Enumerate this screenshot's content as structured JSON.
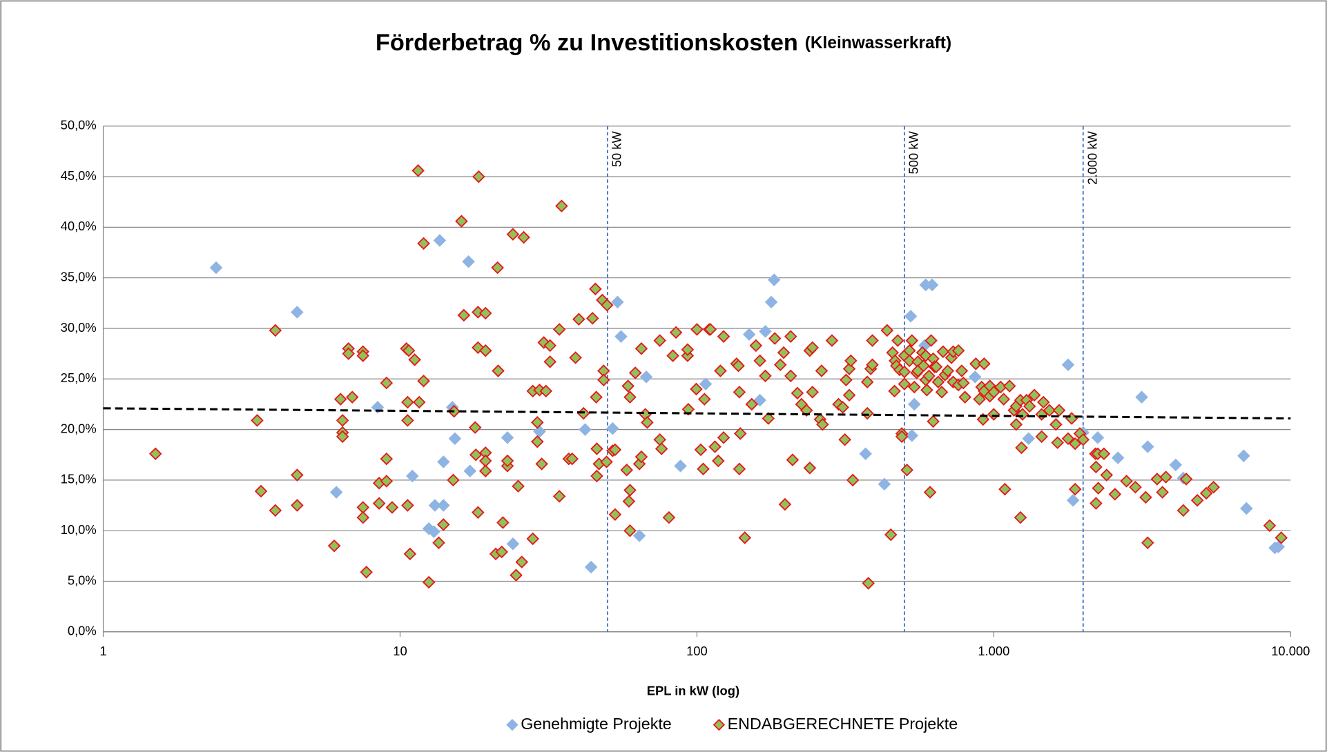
{
  "chart_data": {
    "type": "scatter",
    "title": "Förderbetrag  % zu Investitionskosten",
    "subtitle": "(Kleinwasserkraft)",
    "xlabel": "EPL in kW (log)",
    "xscale": "log",
    "xlim": [
      1,
      10000
    ],
    "xticks": [
      1,
      10,
      100,
      {
        "value": 1000,
        "label": "1.000"
      },
      {
        "value": 10000,
        "label": "10.000"
      }
    ],
    "ylim": [
      0,
      50
    ],
    "yticks": [
      {
        "value": 0,
        "label": "0,0%"
      },
      {
        "value": 5,
        "label": "5,0%"
      },
      {
        "value": 10,
        "label": "10,0%"
      },
      {
        "value": 15,
        "label": "15,0%"
      },
      {
        "value": 20,
        "label": "20,0%"
      },
      {
        "value": 25,
        "label": "25,0%"
      },
      {
        "value": 30,
        "label": "30,0%"
      },
      {
        "value": 35,
        "label": "35,0%"
      },
      {
        "value": 40,
        "label": "40,0%"
      },
      {
        "value": 45,
        "label": "45,0%"
      },
      {
        "value": 50,
        "label": "50,0%"
      }
    ],
    "grid": true,
    "legend": "bottom",
    "vlines": [
      {
        "x": 50,
        "label": "50 kW"
      },
      {
        "x": 500,
        "label": "500 kW"
      },
      {
        "x": 2000,
        "label": "2.000 kW"
      }
    ],
    "vline_color": "#4472c4",
    "trendline": {
      "x": [
        1,
        10000
      ],
      "values": [
        22.1,
        21.1
      ],
      "color": "#000000"
    },
    "series": [
      {
        "name": "Genehmigte Projekte",
        "color": "#8eb4e3",
        "edge_color": "#8eb4e3",
        "x": [
          2.4,
          4.5,
          6.1,
          8.4,
          11,
          12.5,
          13,
          13.6,
          14,
          13.1,
          14,
          15,
          15.3,
          17,
          17.2,
          23,
          24,
          29.5,
          42,
          44,
          52,
          55.5,
          54,
          64,
          67.5,
          88,
          107,
          150,
          170,
          178,
          182,
          163,
          370,
          428,
          525,
          540,
          530,
          590,
          620,
          585,
          865,
          1310,
          1780,
          1850,
          2000,
          2240,
          2620,
          3150,
          3300,
          4100,
          4350,
          6950,
          7100,
          8850,
          9100
        ],
        "values": [
          36.0,
          31.6,
          13.8,
          22.2,
          15.4,
          10.2,
          9.9,
          38.7,
          16.8,
          12.5,
          12.5,
          22.2,
          19.1,
          36.6,
          15.9,
          19.2,
          8.7,
          19.8,
          20.0,
          6.4,
          20.1,
          29.2,
          32.6,
          9.5,
          25.2,
          16.4,
          24.5,
          29.4,
          29.7,
          32.6,
          34.8,
          22.9,
          17.6,
          14.6,
          31.2,
          22.5,
          19.4,
          34.3,
          34.3,
          28.3,
          25.2,
          19.1,
          26.4,
          13.0,
          19.7,
          19.2,
          17.2,
          23.2,
          18.3,
          16.5,
          15.2,
          17.4,
          12.2,
          8.3,
          8.4
        ]
      },
      {
        "name": "ENDABGERECHNETE Projekte",
        "color": "#92c05a",
        "edge_color": "#e8161a",
        "x": [
          1.5,
          3.3,
          3.4,
          3.8,
          3.8,
          4.5,
          4.5,
          6.0,
          6.3,
          6.4,
          6.4,
          6.4,
          6.7,
          6.7,
          6.9,
          7.5,
          7.5,
          7.5,
          7.5,
          7.7,
          8.5,
          8.5,
          9.0,
          9.0,
          9.0,
          9.4,
          10.5,
          10.7,
          10.6,
          10.6,
          10.6,
          10.8,
          11.2,
          11.5,
          11.6,
          12,
          12,
          12.5,
          13.5,
          14,
          15.1,
          15.2,
          16.1,
          16.4,
          17.9,
          18,
          18.3,
          18.3,
          18.4,
          18.3,
          19.4,
          19.4,
          19.4,
          19.4,
          19.4,
          21.3,
          21.4,
          21,
          22,
          22.2,
          23,
          23,
          24,
          24.6,
          25,
          26.1,
          25.7,
          28,
          28,
          29.5,
          31,
          29,
          29,
          30,
          30.5,
          32,
          32,
          34.4,
          35,
          34.4,
          37,
          38,
          39,
          40,
          41.5,
          44.5,
          45.5,
          45.8,
          46,
          46,
          46.8,
          48,
          48.5,
          48.5,
          49.8,
          49.6,
          52,
          53,
          53,
          58.6,
          59.5,
          58,
          59.5,
          59,
          59.5,
          62,
          64,
          65,
          65,
          67,
          68,
          75,
          75,
          76,
          80.5,
          83,
          85,
          93,
          93,
          93.5,
          99.5,
          100,
          103,
          105,
          106,
          110,
          111,
          115,
          118,
          120,
          123,
          123,
          136,
          138,
          139,
          140,
          139,
          145,
          153,
          158,
          163,
          170,
          174,
          183,
          191,
          196,
          198,
          207,
          207,
          210,
          218,
          225,
          234,
          240,
          240,
          245,
          245,
          260,
          263,
          265,
          285,
          300,
          310,
          318,
          315,
          326,
          326,
          330,
          335,
          375,
          375,
          378,
          385,
          390,
          390,
          437,
          450,
          456,
          463,
          465,
          470,
          475,
          482,
          490,
          490,
          500,
          500,
          500,
          510,
          520,
          520,
          530,
          540,
          550,
          555,
          555,
          575,
          580,
          590,
          590,
          595,
          605,
          615,
          610,
          625,
          625,
          632,
          640,
          650,
          668,
          675,
          685,
          700,
          720,
          730,
          730,
          760,
          760,
          780,
          790,
          800,
          870,
          895,
          910,
          920,
          928,
          928,
          970,
          970,
          1000,
          1000,
          1055,
          1080,
          1090,
          1130,
          1170,
          1190,
          1190,
          1230,
          1250,
          1230,
          1240,
          1290,
          1320,
          1370,
          1450,
          1450,
          1470,
          1540,
          1620,
          1640,
          1660,
          1780,
          1830,
          1880,
          1880,
          1950,
          2000,
          2200,
          2210,
          2240,
          2210,
          2250,
          2350,
          2400,
          2560,
          2800,
          3000,
          3300,
          3250,
          3550,
          3700,
          3800,
          4350,
          4450,
          4850,
          5200,
          5500,
          8500,
          9300
        ],
        "values": [
          17.6,
          20.9,
          13.9,
          29.8,
          12.0,
          15.5,
          12.5,
          8.5,
          23.0,
          20.9,
          19.7,
          19.3,
          28.0,
          27.5,
          23.2,
          27.7,
          27.3,
          12.3,
          11.3,
          5.9,
          14.7,
          12.7,
          24.6,
          17.1,
          14.9,
          12.3,
          28.0,
          27.8,
          20.9,
          22.7,
          12.5,
          7.7,
          26.9,
          45.6,
          22.7,
          38.4,
          24.8,
          4.9,
          8.8,
          10.6,
          15.0,
          21.8,
          40.6,
          31.3,
          20.2,
          17.5,
          28.1,
          31.6,
          45.0,
          11.8,
          31.5,
          27.8,
          17.7,
          16.9,
          15.9,
          36.0,
          25.8,
          7.7,
          7.9,
          10.8,
          16.4,
          16.9,
          39.3,
          5.6,
          14.4,
          39.0,
          6.9,
          9.2,
          23.8,
          23.9,
          23.8,
          18.8,
          20.7,
          16.6,
          28.6,
          28.3,
          26.7,
          29.9,
          42.1,
          13.4,
          17.1,
          17.1,
          27.1,
          30.9,
          21.6,
          31.0,
          33.9,
          23.2,
          18.1,
          15.4,
          16.6,
          32.8,
          25.8,
          24.9,
          32.3,
          16.8,
          17.9,
          18.0,
          11.6,
          24.3,
          23.2,
          16.0,
          14.0,
          12.9,
          10.0,
          25.6,
          16.6,
          17.3,
          28.0,
          21.5,
          20.7,
          28.8,
          19.0,
          18.1,
          11.3,
          27.3,
          29.6,
          27.3,
          27.9,
          22.0,
          24.0,
          29.9,
          18.0,
          16.1,
          23.0,
          29.9,
          29.9,
          18.3,
          16.9,
          25.8,
          19.2,
          29.2,
          26.5,
          26.3,
          23.7,
          19.6,
          16.1,
          9.3,
          22.5,
          28.3,
          26.8,
          25.3,
          21.1,
          29.0,
          26.4,
          27.6,
          12.6,
          29.2,
          25.3,
          17.0,
          23.6,
          22.5,
          21.9,
          27.8,
          16.2,
          28.1,
          23.7,
          21.0,
          25.8,
          20.5,
          28.8,
          22.5,
          22.2,
          24.9,
          19.0,
          23.4,
          26.0,
          26.8,
          15.0,
          24.7,
          21.6,
          4.8,
          26.0,
          26.4,
          28.8,
          29.8,
          9.6,
          27.6,
          23.8,
          26.8,
          26.3,
          28.8,
          25.9,
          19.6,
          19.3,
          27.3,
          25.7,
          24.5,
          16.0,
          27.8,
          26.8,
          28.8,
          24.2,
          25.6,
          26.7,
          25.8,
          27.6,
          26.3,
          27.3,
          24.9,
          23.9,
          25.3,
          28.8,
          13.8,
          20.8,
          27.0,
          26.2,
          26.2,
          24.7,
          23.7,
          27.7,
          25.4,
          25.8,
          27.1,
          27.7,
          24.7,
          27.8,
          24.4,
          25.8,
          24.6,
          23.2,
          26.5,
          23.0,
          24.2,
          21.0,
          26.5,
          23.8,
          24.3,
          23.3,
          23.7,
          21.5,
          24.2,
          23.0,
          14.1,
          24.3,
          21.9,
          22.3,
          20.5,
          22.9,
          21.5,
          11.3,
          18.2,
          22.9,
          22.3,
          23.4,
          21.5,
          19.3,
          22.7,
          21.9,
          20.5,
          18.7,
          21.9,
          19.1,
          21.1,
          14.1,
          18.6,
          19.6,
          19.0,
          17.6,
          16.3,
          17.6,
          12.7,
          14.2,
          17.6,
          15.5,
          13.6,
          14.9,
          14.3,
          8.8,
          13.3,
          15.1,
          13.8,
          15.3,
          12.0,
          15.1,
          13.0,
          13.7,
          14.3,
          10.5,
          9.3
        ]
      }
    ]
  }
}
